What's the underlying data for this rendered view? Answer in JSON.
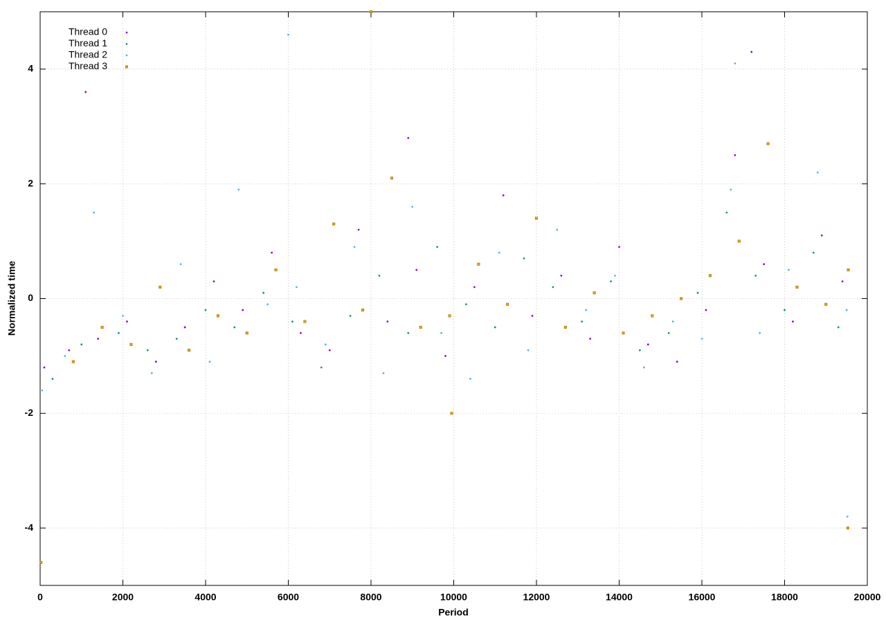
{
  "chart_data": {
    "type": "scatter",
    "x_label": "Period",
    "y_label": "Normalized time",
    "xlim": [
      0,
      20000
    ],
    "ylim": [
      -5,
      5
    ],
    "xticks": [
      0,
      2000,
      4000,
      6000,
      8000,
      10000,
      12000,
      14000,
      16000,
      18000,
      20000
    ],
    "yticks": [
      -4,
      -2,
      0,
      2,
      4
    ],
    "grid": true,
    "legend": "upper left",
    "series": [
      {
        "name": "Thread 0",
        "color": "#9400d3",
        "marker": "dot",
        "x": [
          100,
          700,
          1400,
          2100,
          2800,
          3500,
          4200,
          4900,
          5600,
          6300,
          7000,
          7700,
          8400,
          9100,
          9800,
          10500,
          11200,
          11900,
          12600,
          13300,
          14000,
          14700,
          15400,
          16100,
          16800,
          17500,
          18200,
          18900,
          19400,
          1100,
          8900,
          17200
        ],
        "values": [
          -1.2,
          -0.9,
          -0.7,
          -0.4,
          -1.1,
          -0.5,
          0.3,
          -0.2,
          0.8,
          -0.6,
          -0.9,
          1.2,
          -0.4,
          0.5,
          -1.0,
          0.2,
          1.8,
          -0.3,
          0.4,
          -0.7,
          0.9,
          -0.8,
          -1.1,
          -0.2,
          2.5,
          0.6,
          -0.4,
          1.1,
          0.3,
          3.6,
          2.8,
          4.3
        ]
      },
      {
        "name": "Thread 1",
        "color": "#009e73",
        "marker": "dot",
        "x": [
          300,
          1000,
          1900,
          2600,
          3300,
          4000,
          4700,
          5400,
          6100,
          6800,
          7500,
          8200,
          8900,
          9600,
          10300,
          11000,
          11700,
          12400,
          13100,
          13800,
          14500,
          15200,
          15900,
          16600,
          17300,
          18000,
          18700,
          19300
        ],
        "values": [
          -1.4,
          -0.8,
          -0.6,
          -0.9,
          -0.7,
          -0.2,
          -0.5,
          0.1,
          -0.4,
          -1.2,
          -0.3,
          0.4,
          -0.6,
          0.9,
          -0.1,
          -0.5,
          0.7,
          0.2,
          -0.4,
          0.3,
          -0.9,
          -0.6,
          0.1,
          1.5,
          0.4,
          -0.2,
          0.8,
          -0.5
        ]
      },
      {
        "name": "Thread 2",
        "color": "#56b4e9",
        "marker": "dot",
        "x": [
          50,
          600,
          1300,
          2000,
          2700,
          3400,
          4100,
          4800,
          5500,
          6200,
          6900,
          7600,
          8300,
          9000,
          9700,
          10400,
          11100,
          11800,
          12500,
          13200,
          13900,
          14600,
          15300,
          16000,
          16700,
          17400,
          18100,
          18800,
          19500,
          6000,
          16800,
          19520
        ],
        "values": [
          -1.6,
          -1.0,
          1.5,
          -0.3,
          -1.3,
          0.6,
          -1.1,
          1.9,
          -0.1,
          0.2,
          -0.8,
          0.9,
          -1.3,
          1.6,
          -0.6,
          -1.4,
          0.8,
          -0.9,
          1.2,
          -0.2,
          0.4,
          -1.2,
          -0.4,
          -0.7,
          1.9,
          -0.6,
          0.5,
          2.2,
          -0.2,
          4.6,
          4.1,
          -3.8
        ]
      },
      {
        "name": "Thread 3",
        "color": "#e69f00",
        "marker": "square",
        "x": [
          20,
          800,
          1500,
          2200,
          2900,
          3600,
          4300,
          5000,
          5700,
          6400,
          7100,
          7800,
          8500,
          9200,
          9900,
          10600,
          11300,
          12000,
          12700,
          13400,
          14100,
          14800,
          15500,
          16200,
          16900,
          17600,
          18300,
          19000,
          19540,
          9950,
          8000,
          19530
        ],
        "values": [
          -4.6,
          -1.1,
          -0.5,
          -0.8,
          0.2,
          -0.9,
          -0.3,
          -0.6,
          0.5,
          -0.4,
          1.3,
          -0.2,
          2.1,
          -0.5,
          -0.3,
          0.6,
          -0.1,
          1.4,
          -0.5,
          0.1,
          -0.6,
          -0.3,
          0.0,
          0.4,
          1.0,
          2.7,
          0.2,
          -0.1,
          0.5,
          -2.0,
          5.0,
          -4.0
        ]
      }
    ]
  }
}
